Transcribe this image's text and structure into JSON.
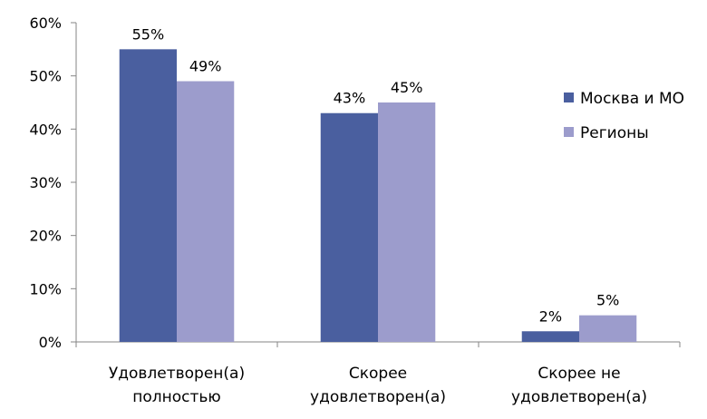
{
  "chart_data": {
    "type": "bar",
    "categories": [
      [
        "Удовлетворен(а)",
        "полностью"
      ],
      [
        "Скорее",
        "удовлетворен(а)"
      ],
      [
        "Скорее не",
        "удовлетворен(а)"
      ]
    ],
    "series": [
      {
        "name": "Москва и МО",
        "values": [
          55,
          43,
          2
        ],
        "labels": [
          "55%",
          "43%",
          "2%"
        ],
        "color": "#4A5F9F"
      },
      {
        "name": "Регионы",
        "values": [
          49,
          45,
          5
        ],
        "labels": [
          "49%",
          "45%",
          "5%"
        ],
        "color": "#9C9CCC"
      }
    ],
    "ylim": [
      0,
      60
    ],
    "yticks": [
      0,
      10,
      20,
      30,
      40,
      50,
      60
    ],
    "ytick_labels": [
      "0%",
      "10%",
      "20%",
      "30%",
      "40%",
      "50%",
      "60%"
    ],
    "grid": false,
    "legend_position": "right",
    "title": "",
    "xlabel": "",
    "ylabel": ""
  }
}
